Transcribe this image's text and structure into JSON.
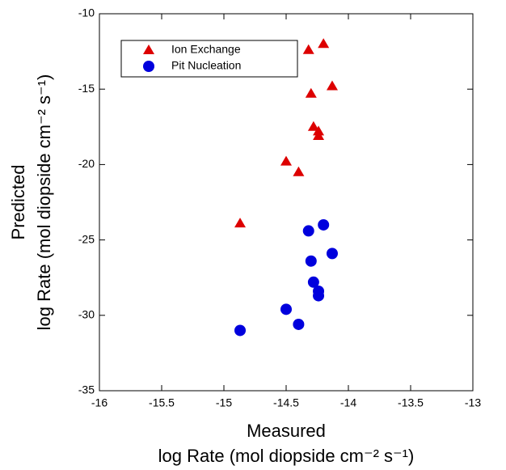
{
  "chart_data": {
    "type": "scatter",
    "x_label": [
      "Measured",
      "log Rate (mol diopside cm⁻² s⁻¹)"
    ],
    "y_label": [
      "Predicted",
      "log Rate (mol diopside cm⁻² s⁻¹)"
    ],
    "xlim": [
      -16,
      -13
    ],
    "xticks": [
      -16,
      -15.5,
      -15,
      -14.5,
      -14,
      -13.5,
      -13
    ],
    "ylim": [
      -35,
      -10
    ],
    "yticks": [
      -35,
      -30,
      -25,
      -20,
      -15,
      -10
    ],
    "legend": "upper left",
    "series": [
      {
        "name": "Ion Exchange",
        "color": "#dd0000",
        "marker": "triangle",
        "x": [
          -14.2,
          -14.32,
          -14.13,
          -14.3,
          -14.28,
          -14.24,
          -14.24,
          -14.5,
          -14.4,
          -14.87
        ],
        "values": [
          -12.0,
          -12.4,
          -14.8,
          -15.3,
          -17.5,
          -17.8,
          -18.1,
          -19.8,
          -20.5,
          -23.9
        ]
      },
      {
        "name": "Pit Nucleation",
        "color": "#0000dd",
        "marker": "circle",
        "x": [
          -14.2,
          -14.32,
          -14.13,
          -14.3,
          -14.28,
          -14.24,
          -14.24,
          -14.5,
          -14.4,
          -14.87
        ],
        "values": [
          -24.0,
          -24.4,
          -25.9,
          -26.4,
          -27.8,
          -28.4,
          -28.7,
          -29.6,
          -30.6,
          -31.0
        ]
      }
    ]
  }
}
